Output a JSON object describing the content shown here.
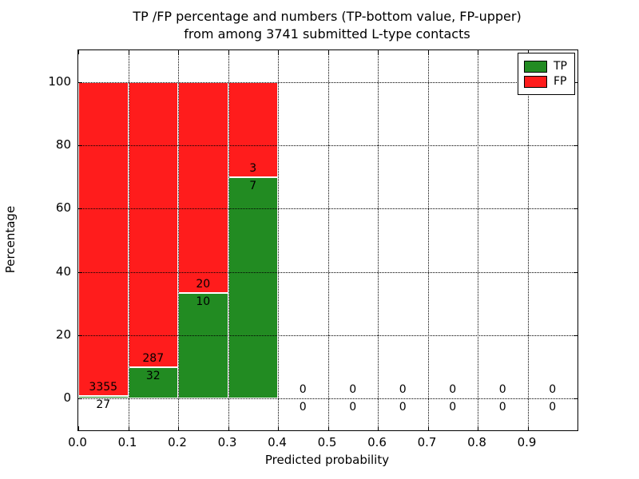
{
  "chart_data": {
    "type": "bar",
    "stacked": true,
    "normalized_to_percent": true,
    "title_line1": "TP /FP percentage and numbers (TP-bottom value, FP-upper)",
    "title_line2": "from among 3741 submitted L-type contacts",
    "xlabel": "Predicted probability",
    "ylabel": "Percentage",
    "total_submitted": 3741,
    "xlim": [
      0.0,
      1.0
    ],
    "ylim": [
      -10,
      110
    ],
    "xticks": [
      0.0,
      0.1,
      0.2,
      0.3,
      0.4,
      0.5,
      0.6,
      0.7,
      0.8,
      0.9
    ],
    "yticks": [
      0,
      20,
      40,
      60,
      80,
      100
    ],
    "grid_style": "dotted",
    "legend_position": "upper right",
    "bin_edges": [
      0.0,
      0.1,
      0.2,
      0.3,
      0.4,
      0.5,
      0.6,
      0.7,
      0.8,
      0.9,
      1.0
    ],
    "series": [
      {
        "name": "TP",
        "color": "#228B22",
        "counts": [
          27,
          32,
          10,
          7,
          0,
          0,
          0,
          0,
          0,
          0
        ]
      },
      {
        "name": "FP",
        "color": "#FF1C1C",
        "counts": [
          3355,
          287,
          20,
          3,
          0,
          0,
          0,
          0,
          0,
          0
        ]
      }
    ],
    "tp_percent_per_bin": [
      0.8,
      10.0,
      33.3,
      70.0,
      0,
      0,
      0,
      0,
      0,
      0
    ],
    "fp_percent_per_bin": [
      99.2,
      90.0,
      66.7,
      30.0,
      0,
      0,
      0,
      0,
      0,
      0
    ]
  }
}
